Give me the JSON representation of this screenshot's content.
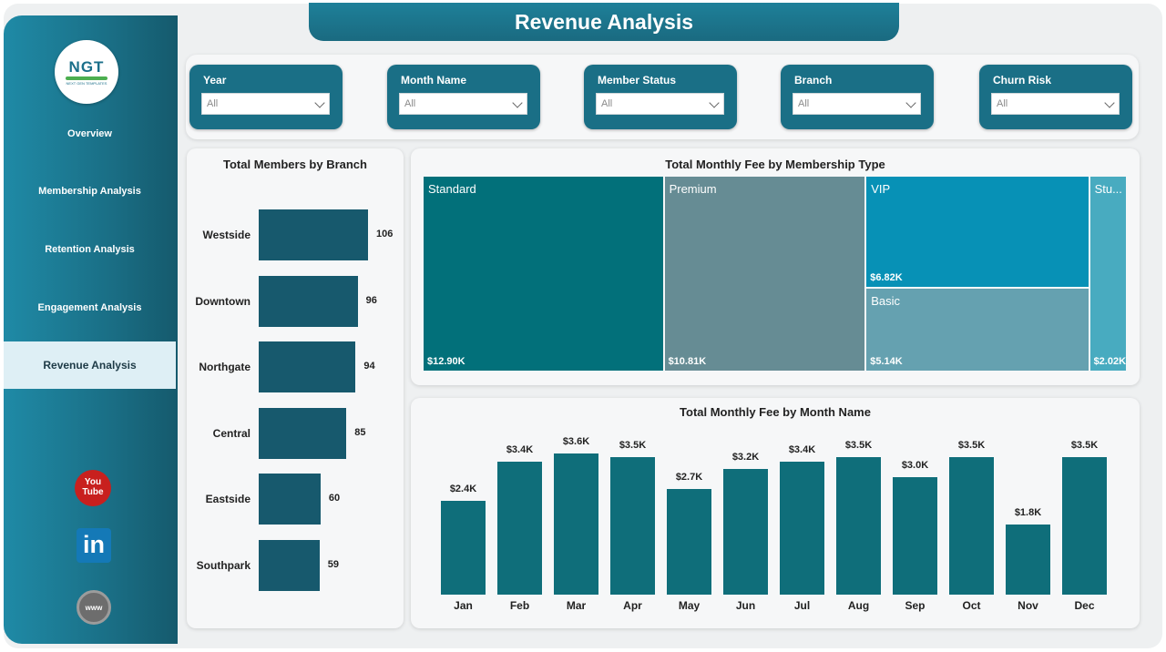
{
  "title": "Revenue Analysis",
  "logo": {
    "text": "NGT",
    "subtext": "NEXT GEN TEMPLATES"
  },
  "nav": {
    "items": [
      {
        "label": "Overview",
        "active": false
      },
      {
        "label": "Membership Analysis",
        "active": false
      },
      {
        "label": "Retention Analysis",
        "active": false
      },
      {
        "label": "Engagement Analysis",
        "active": false
      },
      {
        "label": "Revenue Analysis",
        "active": true
      }
    ]
  },
  "social": {
    "youtube": "You Tube",
    "linkedin": "in",
    "web": "www"
  },
  "filters": [
    {
      "label": "Year",
      "value": "All"
    },
    {
      "label": "Month Name",
      "value": "All"
    },
    {
      "label": "Member Status",
      "value": "All"
    },
    {
      "label": "Branch",
      "value": "All"
    },
    {
      "label": "Churn Risk",
      "value": "All"
    }
  ],
  "colors": {
    "accent": "#1a6f86",
    "bar_dark": "#17596d",
    "bar_teal": "#0f6e7a"
  },
  "chart_data": [
    {
      "type": "bar",
      "orientation": "horizontal",
      "title": "Total Members by Branch",
      "categories": [
        "Westside",
        "Downtown",
        "Northgate",
        "Central",
        "Eastside",
        "Southpark"
      ],
      "values": [
        106,
        96,
        94,
        85,
        60,
        59
      ],
      "value_labels": [
        "106",
        "96",
        "94",
        "85",
        "60",
        "59"
      ]
    },
    {
      "type": "treemap",
      "title": "Total Monthly Fee by Membership Type",
      "categories": [
        "Standard",
        "Premium",
        "VIP",
        "Basic",
        "Stu..."
      ],
      "values": [
        12.9,
        10.81,
        6.82,
        5.14,
        2.02
      ],
      "value_labels": [
        "$12.90K",
        "$10.81K",
        "$6.82K",
        "$5.14K",
        "$2.02K"
      ],
      "colors": [
        "#02707a",
        "#668c94",
        "#0791b6",
        "#65a1b0",
        "#48abc0"
      ]
    },
    {
      "type": "bar",
      "title": "Total Monthly Fee by Month Name",
      "categories": [
        "Jan",
        "Feb",
        "Mar",
        "Apr",
        "May",
        "Jun",
        "Jul",
        "Aug",
        "Sep",
        "Oct",
        "Nov",
        "Dec"
      ],
      "values": [
        2.4,
        3.4,
        3.6,
        3.5,
        2.7,
        3.2,
        3.4,
        3.5,
        3.0,
        3.5,
        1.8,
        3.5
      ],
      "value_labels": [
        "$2.4K",
        "$3.4K",
        "$3.6K",
        "$3.5K",
        "$2.7K",
        "$3.2K",
        "$3.4K",
        "$3.5K",
        "$3.0K",
        "$3.5K",
        "$1.8K",
        "$3.5K"
      ]
    }
  ]
}
